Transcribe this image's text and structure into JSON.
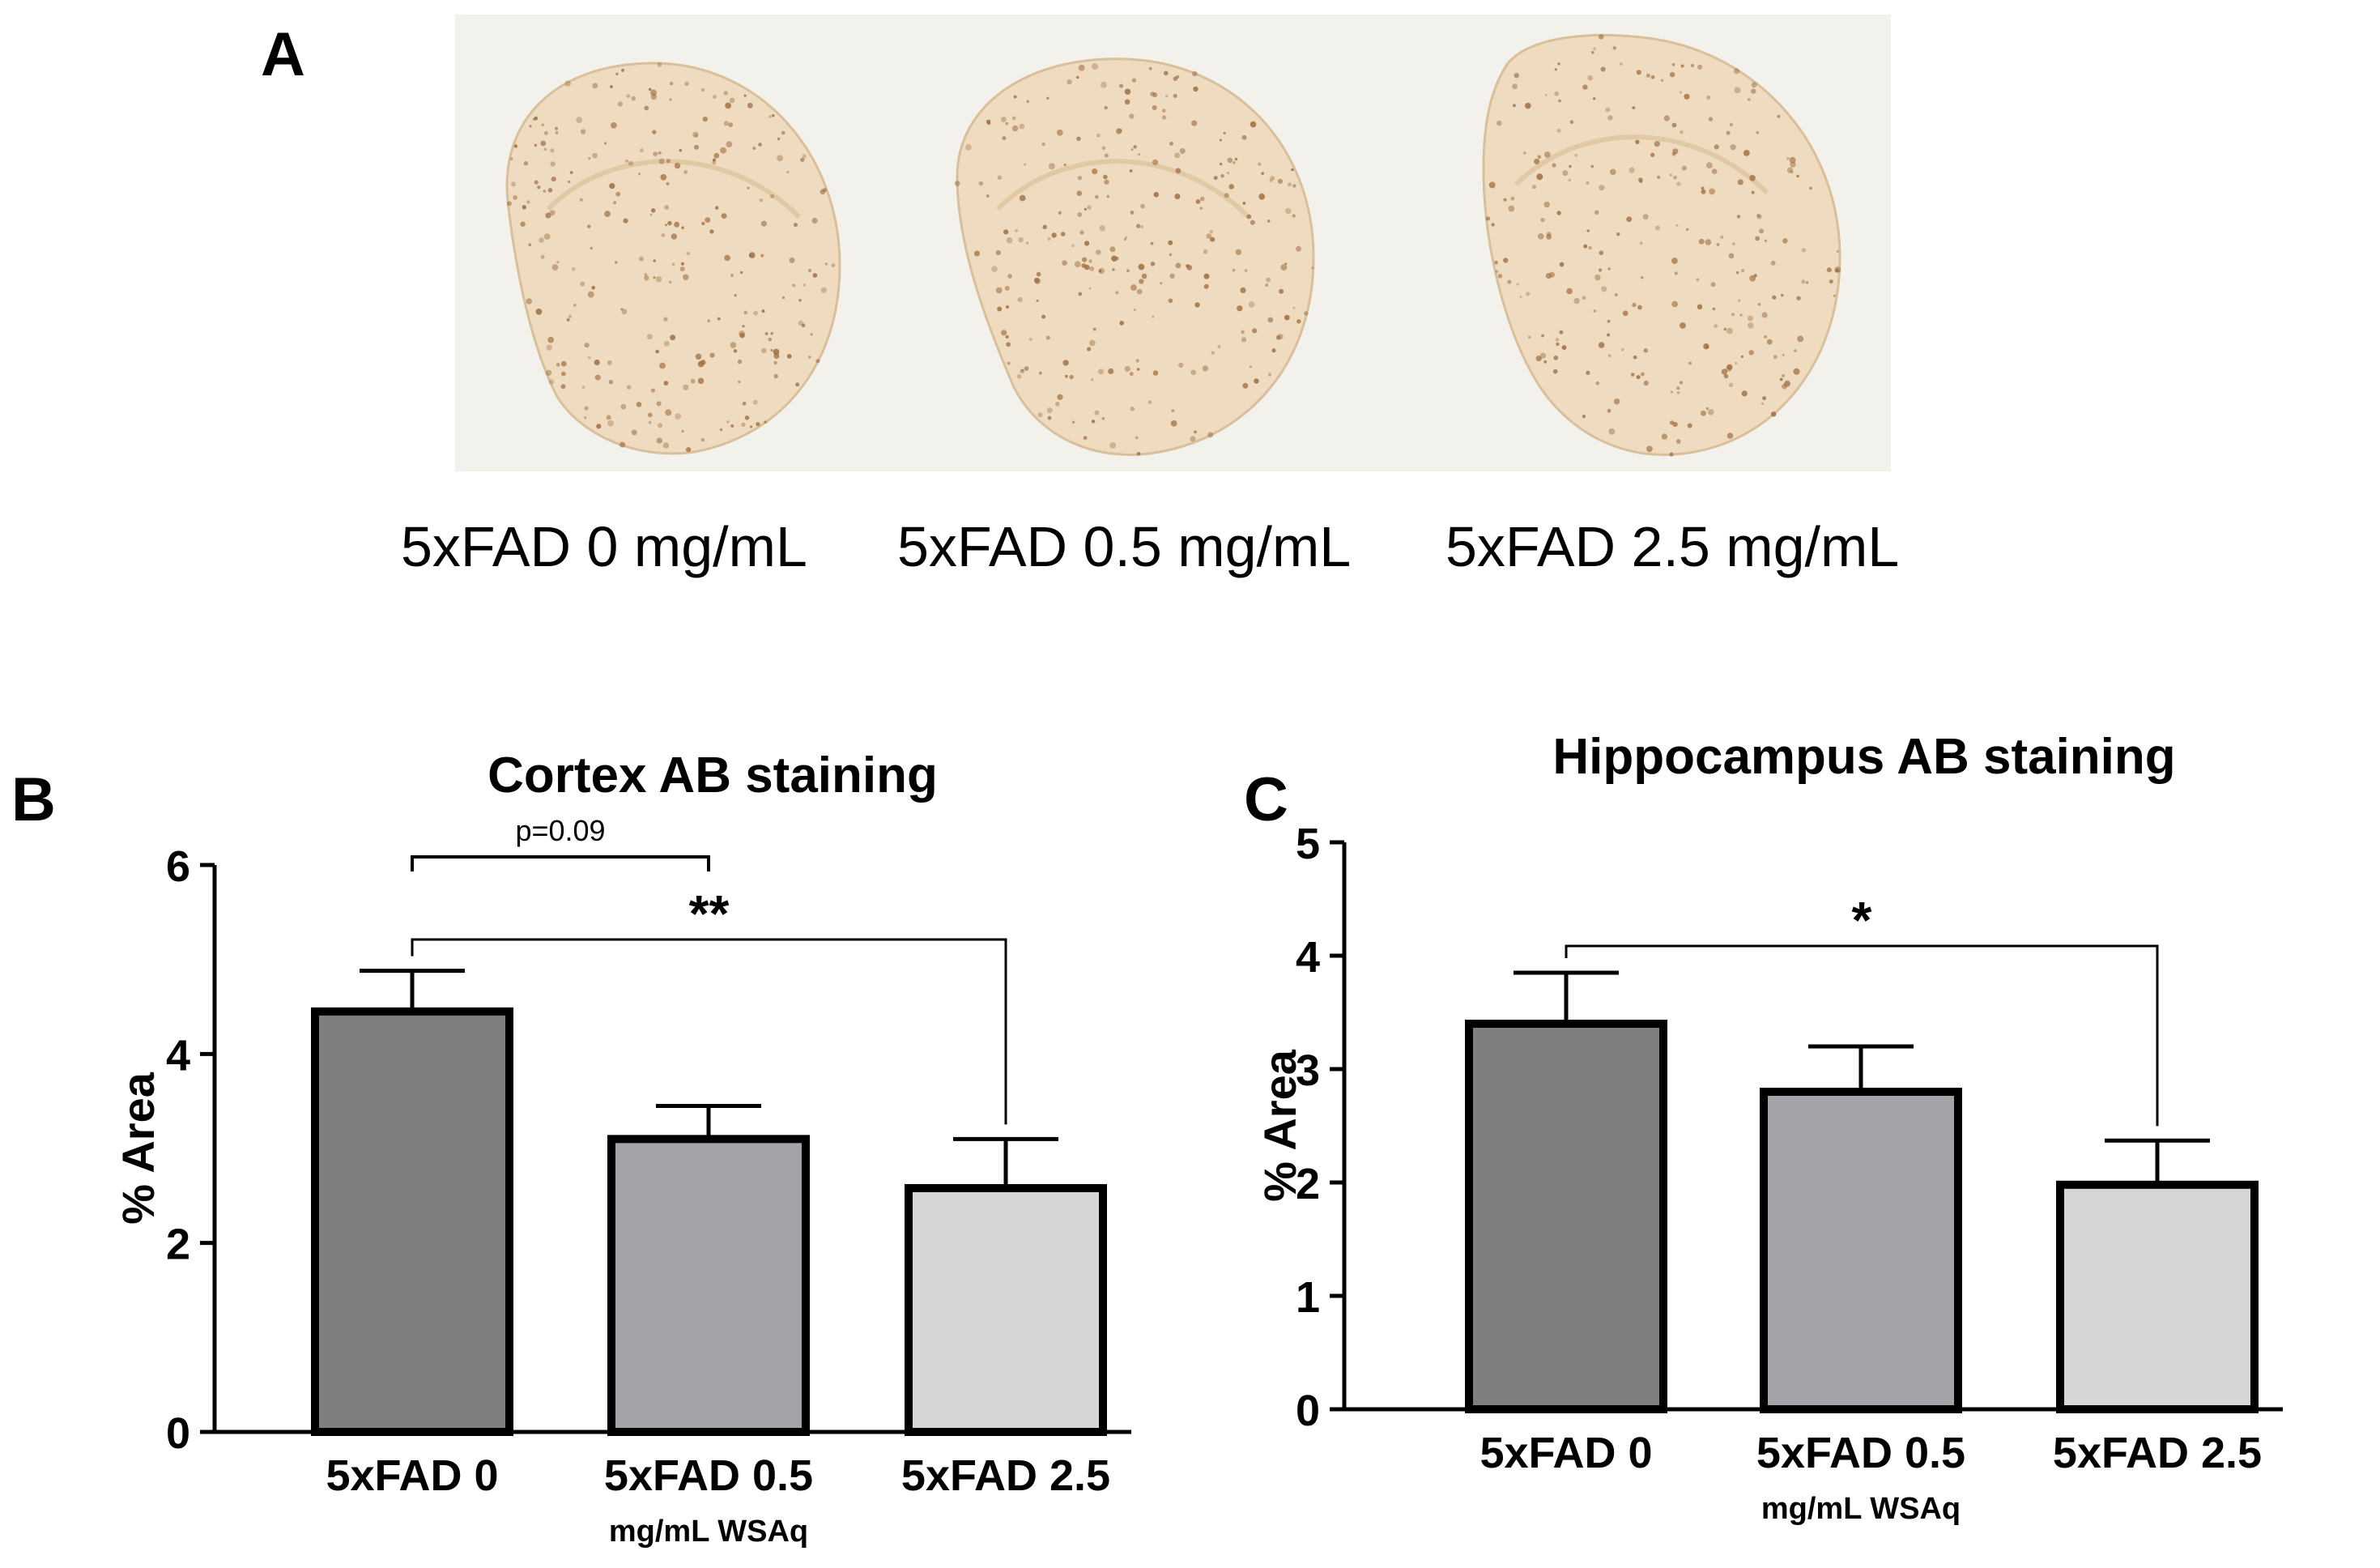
{
  "panels": {
    "a": {
      "letter": "A"
    },
    "b": {
      "letter": "B"
    },
    "c": {
      "letter": "C"
    }
  },
  "micrograph_labels": [
    "5xFAD 0 mg/mL",
    "5xFAD 0.5 mg/mL",
    "5xFAD 2.5 mg/mL"
  ],
  "colors": {
    "bar_0": "#7f7f7f",
    "bar_05": "#a3a3a9",
    "bar_25": "#d6d6d6",
    "stain_tissue": "#efdcc0",
    "stain_dots": "#9c6b3c"
  },
  "chart_data": [
    {
      "type": "bar",
      "title": "Cortex AB staining",
      "ylabel": "% Area",
      "xlabel": "",
      "categories": [
        "5xFAD 0",
        "5xFAD 0.5",
        "5xFAD 2.5"
      ],
      "category_sublabels": [
        "",
        "mg/mL WSAq",
        ""
      ],
      "values": [
        4.45,
        3.1,
        2.58
      ],
      "errors": [
        0.43,
        0.35,
        0.52
      ],
      "ylim": [
        0,
        6
      ],
      "yticks": [
        0,
        2,
        4,
        6
      ],
      "grid": false,
      "annotations": [
        {
          "from": 0,
          "to": 1,
          "label": "p=0.09"
        },
        {
          "from": 0,
          "to": 2,
          "label": "**"
        }
      ]
    },
    {
      "type": "bar",
      "title": "Hippocampus AB staining",
      "ylabel": "% Area",
      "xlabel": "",
      "categories": [
        "5xFAD 0",
        "5xFAD 0.5",
        "5xFAD 2.5"
      ],
      "category_sublabels": [
        "",
        "mg/mL WSAq",
        ""
      ],
      "values": [
        3.4,
        2.8,
        1.98
      ],
      "errors": [
        0.45,
        0.4,
        0.39
      ],
      "ylim": [
        0,
        5
      ],
      "yticks": [
        0,
        1,
        2,
        3,
        4,
        5
      ],
      "grid": false,
      "annotations": [
        {
          "from": 0,
          "to": 2,
          "label": "*"
        }
      ]
    }
  ]
}
